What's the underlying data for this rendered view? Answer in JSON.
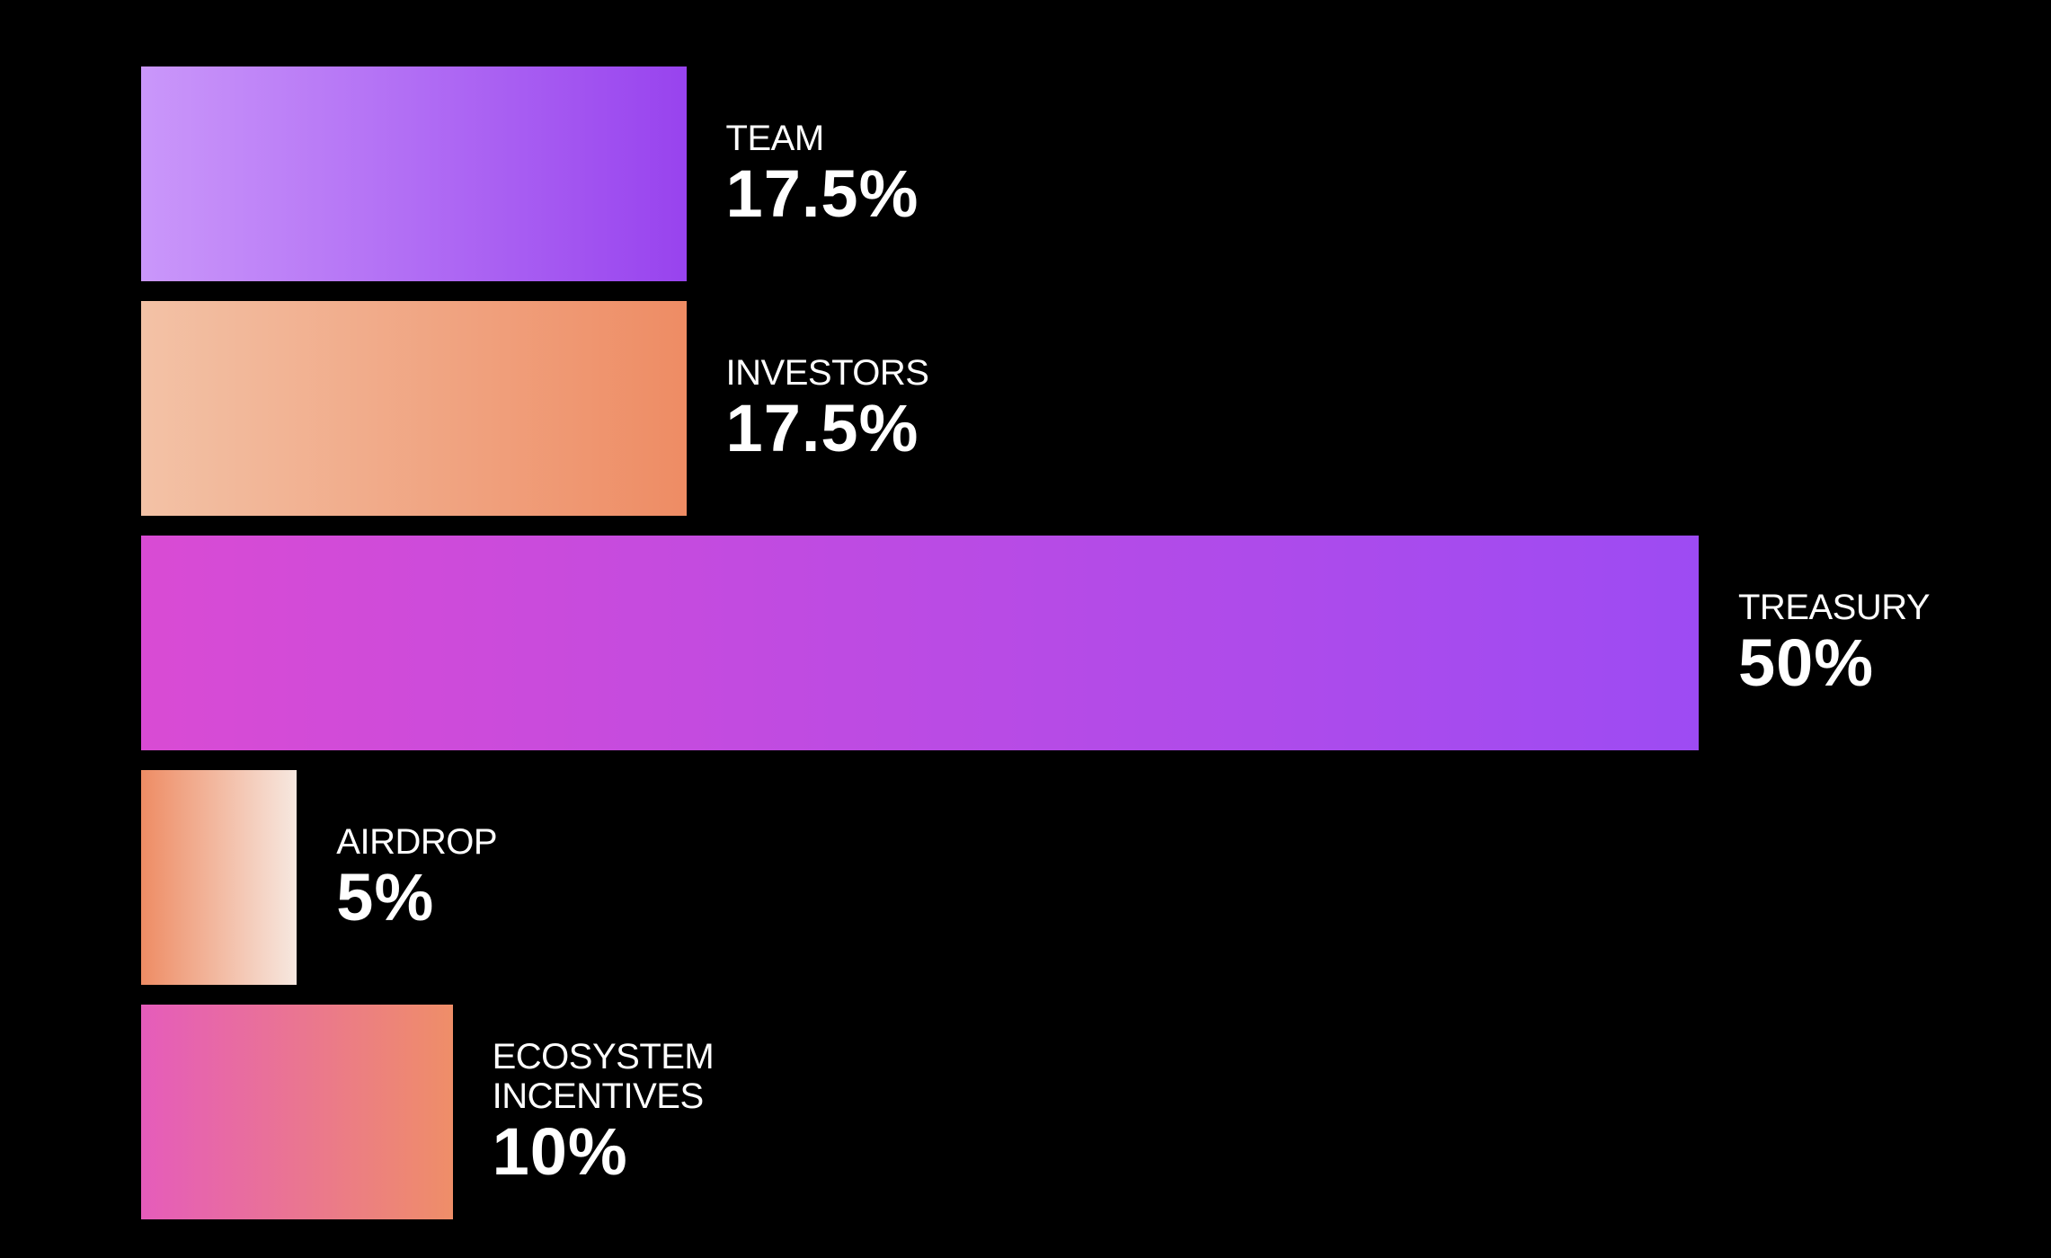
{
  "chart_data": {
    "type": "bar",
    "orientation": "horizontal",
    "categories": [
      "TEAM",
      "INVESTORS",
      "TREASURY",
      "AIRDROP",
      "ECOSYSTEM INCENTIVES"
    ],
    "values": [
      17.5,
      17.5,
      50,
      5,
      10
    ],
    "value_labels": [
      "17.5%",
      "17.5%",
      "50%",
      "5%",
      "10%"
    ],
    "colors": [
      [
        "#ca97fa",
        "#9843ee"
      ],
      [
        "#f3c2a6",
        "#ee8c64"
      ],
      [
        "#d94bd4",
        "#9d4bf3"
      ],
      [
        "#ee8c64",
        "#f7e8e0"
      ],
      [
        "#e55cbb",
        "#ef8e68"
      ]
    ]
  }
}
